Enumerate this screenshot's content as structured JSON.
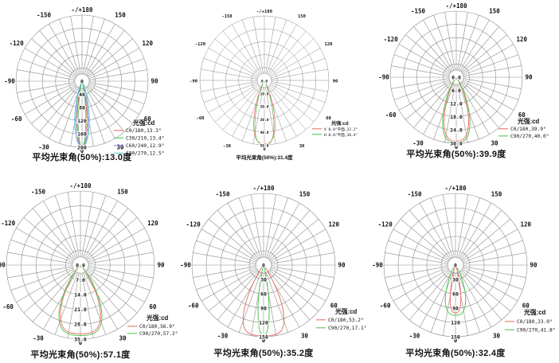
{
  "page": {
    "background": "#ffffff"
  },
  "colors": {
    "red": "#e8756a",
    "green": "#57c457",
    "blue": "#8d8de0",
    "cyan": "#5fd0d0",
    "grid": "#8c8c8c",
    "text": "#111111"
  },
  "chart_data": [
    {
      "type": "polar",
      "position": "top-left",
      "legend_title": "光强:cd",
      "caption": "平均光束角(50%):13.0度",
      "beam_angle_50_deg": 13.0,
      "angle_labels": {
        "top": "-/+180",
        "bottom": "0",
        "pairs": [
          [
            "-30",
            "30"
          ],
          [
            "-60",
            "60"
          ],
          [
            "-90",
            "90"
          ],
          [
            "-120",
            "120"
          ],
          [
            "-150",
            "150"
          ]
        ]
      },
      "radial_ticks": [
        "0",
        "40",
        "80",
        "120",
        "160",
        "200"
      ],
      "rmax": 200,
      "grid": {
        "rings": 5,
        "spoke_step_deg": 10
      },
      "series": [
        {
          "label": "C0/180,13.3°",
          "color": "#e8756a",
          "peak": 200,
          "beam_deg": 13.3,
          "shape": 2
        },
        {
          "label": "C30/210,13.4°",
          "color": "#57c457",
          "peak": 200,
          "beam_deg": 13.4,
          "shape": 2
        },
        {
          "label": "C60/240,12.9°",
          "color": "#8d8de0",
          "peak": 200,
          "beam_deg": 12.9,
          "shape": 2
        },
        {
          "label": "C90/270,12.5°",
          "color": "#5fd0d0",
          "peak": 200,
          "beam_deg": 12.5,
          "shape": 2
        }
      ]
    },
    {
      "type": "polar",
      "position": "top-middle",
      "legend_title": "光强:cd",
      "caption": "平均光束角(50%):31.4度",
      "beam_angle_50_deg": 31.4,
      "angle_labels": {
        "top": "-/+180",
        "bottom": "0",
        "pairs": [
          [
            "-30",
            "30"
          ],
          [
            "-60",
            "60"
          ],
          [
            "-90",
            "90"
          ],
          [
            "-120",
            "120"
          ],
          [
            "-150",
            "150"
          ]
        ]
      },
      "radial_ticks": [
        "0.0",
        "10.0",
        "20.0",
        "30.0",
        "40.0",
        "50.0"
      ],
      "rmax": 50,
      "grid": {
        "rings": 5,
        "spoke_step_deg": 10
      },
      "series": [
        {
          "label": "V 0.0°平面,32.2°",
          "color": "#e8756a",
          "peak": 49,
          "beam_deg": 32.2,
          "shape": 3
        },
        {
          "label": "H 0.0°平面,30.4°",
          "color": "#57c457",
          "peak": 50,
          "beam_deg": 30.4,
          "shape": 3
        }
      ]
    },
    {
      "type": "polar",
      "position": "top-right",
      "legend_title": "光强:cd",
      "caption": "平均光束角(50%):39.9度",
      "beam_angle_50_deg": 39.9,
      "angle_labels": {
        "top": "-/+180",
        "bottom": "0",
        "pairs": [
          [
            "-30",
            "30"
          ],
          [
            "-60",
            "60"
          ],
          [
            "-90",
            "90"
          ],
          [
            "-120",
            "120"
          ],
          [
            "-150",
            "150"
          ]
        ]
      },
      "radial_ticks": [
        "0.0",
        "6.0",
        "12.0",
        "18.0",
        "24.0",
        "30.0"
      ],
      "rmax": 30,
      "grid": {
        "rings": 5,
        "spoke_step_deg": 10
      },
      "series": [
        {
          "label": "C0/180,39.9°",
          "color": "#e8756a",
          "peak": 29,
          "beam_deg": 39.9,
          "shape": 3
        },
        {
          "label": "C90/270,40.0°",
          "color": "#57c457",
          "peak": 29.8,
          "beam_deg": 40.0,
          "shape": 3
        }
      ]
    },
    {
      "type": "polar",
      "position": "bottom-left",
      "legend_title": "光强:cd",
      "caption": "平均光束角(50%):57.1度",
      "beam_angle_50_deg": 57.1,
      "angle_labels": {
        "top": "-/+180",
        "bottom": "0",
        "pairs": [
          [
            "-30",
            "30"
          ],
          [
            "-60",
            "60"
          ],
          [
            "-90",
            "90"
          ],
          [
            "-120",
            "120"
          ],
          [
            "-150",
            "150"
          ]
        ]
      },
      "radial_ticks": [
        "0.0",
        "7.0",
        "14.0",
        "21.0",
        "28.0",
        "35.0"
      ],
      "rmax": 35,
      "grid": {
        "rings": 5,
        "spoke_step_deg": 10
      },
      "series": [
        {
          "label": "C0/180,56.9°",
          "color": "#e8756a",
          "peak": 32.5,
          "beam_deg": 56.9,
          "shape": 4
        },
        {
          "label": "C90/270,57.2°",
          "color": "#57c457",
          "peak": 33.3,
          "beam_deg": 57.2,
          "shape": 4
        }
      ]
    },
    {
      "type": "polar",
      "position": "bottom-middle",
      "legend_title": "光强:cd",
      "caption": "平均光束角(50%):35.2度",
      "beam_angle_50_deg": 35.2,
      "angle_labels": {
        "top": "-/+180",
        "bottom": "0",
        "pairs": [
          [
            "-30",
            "30"
          ],
          [
            "-60",
            "60"
          ],
          [
            "-90",
            "90"
          ],
          [
            "-120",
            "120"
          ],
          [
            "-150",
            "150"
          ]
        ]
      },
      "radial_ticks": [
        "0",
        "30",
        "60",
        "90",
        "120",
        "150"
      ],
      "rmax": 150,
      "grid": {
        "rings": 5,
        "spoke_step_deg": 10
      },
      "series": [
        {
          "label": "C0/180,53.2°",
          "color": "#e8756a",
          "peak": 148,
          "beam_deg": 53.2,
          "shape": 5
        },
        {
          "label": "C90/270,17.1°",
          "color": "#57c457",
          "peak": 147,
          "beam_deg": 17.1,
          "shape": 2.5
        }
      ]
    },
    {
      "type": "polar",
      "position": "bottom-right",
      "legend_title": "光强:cd",
      "caption": "平均光束角(50%):32.4度",
      "beam_angle_50_deg": 32.4,
      "angle_labels": {
        "top": "-/+180",
        "bottom": "0",
        "pairs": [
          [
            "-30",
            "30"
          ],
          [
            "-60",
            "60"
          ],
          [
            "-90",
            "90"
          ],
          [
            "-120",
            "120"
          ],
          [
            "-150",
            "150"
          ]
        ]
      },
      "radial_ticks": [
        "0",
        "30",
        "60",
        "90",
        "120",
        "150"
      ],
      "rmax": 150,
      "grid": {
        "rings": 5,
        "spoke_step_deg": 10
      },
      "series": [
        {
          "label": "C0/180,23.0°",
          "color": "#e8756a",
          "peak": 100,
          "beam_deg": 23.0,
          "shape": 3
        },
        {
          "label": "C90/270,41.8°",
          "color": "#57c457",
          "peak": 105,
          "beam_deg": 41.8,
          "shape": 3
        }
      ]
    }
  ]
}
